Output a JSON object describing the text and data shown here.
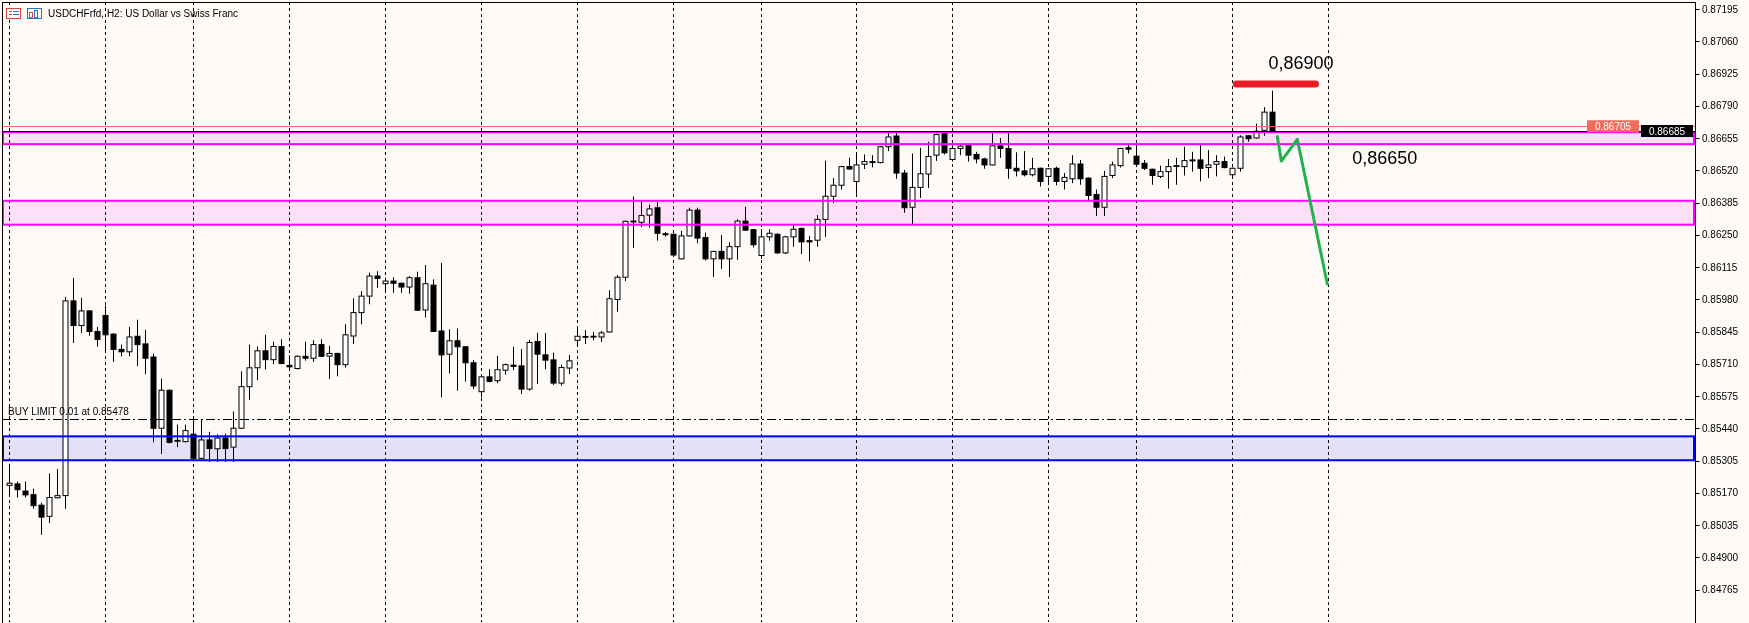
{
  "chart_data": {
    "type": "candlestick",
    "title": "USDCHFrfd, H2: US Dollar vs Swiss Franc",
    "categories": [
      null,
      null,
      null,
      null,
      null,
      null,
      null,
      null,
      null,
      null,
      null,
      null,
      null,
      null,
      null,
      null,
      null,
      null,
      null,
      null,
      null,
      null,
      null,
      null,
      null,
      null,
      null,
      null,
      null,
      null,
      null,
      null,
      null,
      null,
      null,
      null,
      null,
      null,
      null,
      null,
      null,
      null,
      null,
      null,
      null,
      null,
      null,
      null,
      null,
      null,
      null,
      null,
      null,
      null,
      null,
      null,
      null,
      null,
      null,
      null,
      null,
      null,
      null,
      null,
      null,
      null,
      null,
      null,
      null,
      null,
      null,
      null,
      null,
      null,
      null,
      null,
      null,
      null,
      null,
      null,
      null,
      null,
      null,
      null,
      null,
      null,
      null,
      null,
      null,
      null,
      null,
      null,
      null,
      null,
      null,
      null,
      null,
      null,
      null,
      null,
      null,
      null,
      null,
      null,
      null,
      null,
      null,
      null,
      null,
      null,
      null,
      null,
      null,
      null,
      null,
      null,
      null,
      null,
      null,
      null,
      null,
      null,
      null,
      null,
      null,
      null,
      null,
      null,
      null,
      null,
      null,
      null,
      null,
      null,
      null,
      null,
      null,
      null,
      null,
      null,
      null,
      null,
      null,
      null,
      null,
      null,
      null,
      null,
      null,
      null,
      null,
      null,
      null,
      null,
      null,
      null,
      null,
      null,
      null,
      null,
      null,
      null,
      null,
      null,
      null,
      null,
      null,
      null,
      null,
      null,
      null,
      null,
      null,
      null,
      null,
      null,
      null,
      null,
      null,
      null,
      null,
      null,
      null,
      null,
      null,
      null,
      null,
      null,
      null,
      null,
      null,
      null,
      null,
      null,
      null,
      null,
      null,
      null,
      null,
      null,
      null,
      null,
      null,
      null,
      null,
      null,
      null,
      null,
      null,
      null,
      null
    ],
    "ohlc": [
      [
        0.85202,
        0.85278,
        0.85159,
        0.85211
      ],
      [
        0.85208,
        0.85218,
        0.85151,
        0.85184
      ],
      [
        0.85178,
        0.85218,
        0.85151,
        0.85162
      ],
      [
        0.85163,
        0.85188,
        0.85104,
        0.85117
      ],
      [
        0.85119,
        0.85129,
        0.84995,
        0.85069
      ],
      [
        0.85072,
        0.85252,
        0.85044,
        0.85151
      ],
      [
        0.8515,
        0.8527,
        0.85148,
        0.85159
      ],
      [
        0.85159,
        0.85991,
        0.85104,
        0.85974
      ],
      [
        0.85974,
        0.8607,
        0.85798,
        0.85871
      ],
      [
        0.85871,
        0.85987,
        0.8584,
        0.85932
      ],
      [
        0.85932,
        0.85935,
        0.85828,
        0.85846
      ],
      [
        0.85846,
        0.85865,
        0.85783,
        0.85813
      ],
      [
        0.85913,
        0.85954,
        0.85768,
        0.85832
      ],
      [
        0.85835,
        0.85838,
        0.85719,
        0.85771
      ],
      [
        0.85771,
        0.85791,
        0.85742,
        0.85761
      ],
      [
        0.85761,
        0.85865,
        0.85742,
        0.85823
      ],
      [
        0.85826,
        0.85895,
        0.85701,
        0.85791
      ],
      [
        0.85794,
        0.85853,
        0.85667,
        0.85734
      ],
      [
        0.85739,
        0.85753,
        0.85382,
        0.85441
      ],
      [
        0.85441,
        0.85649,
        0.85333,
        0.856
      ],
      [
        0.856,
        0.85603,
        0.85377,
        0.85382
      ],
      [
        0.85389,
        0.85456,
        0.85362,
        0.8539
      ],
      [
        0.85385,
        0.85456,
        0.85382,
        0.85431
      ],
      [
        0.85416,
        0.85475,
        0.85312,
        0.85315
      ],
      [
        0.85315,
        0.85478,
        0.85312,
        0.85392
      ],
      [
        0.85392,
        0.85426,
        0.853,
        0.85356
      ],
      [
        0.85355,
        0.85416,
        0.853,
        0.854
      ],
      [
        0.854,
        0.85419,
        0.853,
        0.85356
      ],
      [
        0.85362,
        0.85511,
        0.853,
        0.85441
      ],
      [
        0.85441,
        0.85679,
        0.85438,
        0.85615
      ],
      [
        0.85615,
        0.85791,
        0.8556,
        0.85694
      ],
      [
        0.85694,
        0.85783,
        0.85642,
        0.85765
      ],
      [
        0.85765,
        0.85832,
        0.85687,
        0.85728
      ],
      [
        0.85728,
        0.85803,
        0.85709,
        0.85783
      ],
      [
        0.85783,
        0.85813,
        0.85709,
        0.85712
      ],
      [
        0.85704,
        0.85746,
        0.85687,
        0.85698
      ],
      [
        0.85691,
        0.85746,
        0.85687,
        0.85742
      ],
      [
        0.85742,
        0.85803,
        0.85724,
        0.85734
      ],
      [
        0.85734,
        0.85809,
        0.85719,
        0.85791
      ],
      [
        0.85791,
        0.85813,
        0.85739,
        0.85742
      ],
      [
        0.85743,
        0.85786,
        0.85647,
        0.85754
      ],
      [
        0.85754,
        0.85757,
        0.85658,
        0.85707
      ],
      [
        0.85707,
        0.85876,
        0.85695,
        0.85832
      ],
      [
        0.85827,
        0.85985,
        0.85793,
        0.85925
      ],
      [
        0.85925,
        0.86015,
        0.85876,
        0.85994
      ],
      [
        0.85994,
        0.86092,
        0.8596,
        0.86078
      ],
      [
        0.86078,
        0.86098,
        0.86029,
        0.86068
      ],
      [
        0.86046,
        0.86071,
        0.86008,
        0.86057
      ],
      [
        0.86057,
        0.86073,
        0.86008,
        0.86048
      ],
      [
        0.86048,
        0.8605,
        0.86008,
        0.86032
      ],
      [
        0.86032,
        0.86078,
        0.86004,
        0.86071
      ],
      [
        0.86071,
        0.86096,
        0.85932,
        0.85935
      ],
      [
        0.85936,
        0.86124,
        0.85904,
        0.86046
      ],
      [
        0.8604,
        0.86064,
        0.85844,
        0.85846
      ],
      [
        0.85848,
        0.86133,
        0.8557,
        0.85748
      ],
      [
        0.85751,
        0.85855,
        0.8567,
        0.85807
      ],
      [
        0.85807,
        0.85858,
        0.85598,
        0.85782
      ],
      [
        0.85782,
        0.85785,
        0.85636,
        0.85715
      ],
      [
        0.85715,
        0.85727,
        0.85605,
        0.85618
      ],
      [
        0.85594,
        0.85658,
        0.8557,
        0.85656
      ],
      [
        0.85656,
        0.85688,
        0.85633,
        0.85637
      ],
      [
        0.8564,
        0.85744,
        0.8563,
        0.85686
      ],
      [
        0.85684,
        0.85712,
        0.85665,
        0.85707
      ],
      [
        0.85705,
        0.85782,
        0.85684,
        0.857
      ],
      [
        0.85702,
        0.85772,
        0.85584,
        0.85605
      ],
      [
        0.85605,
        0.85811,
        0.85598,
        0.858
      ],
      [
        0.85804,
        0.85841,
        0.85626,
        0.85751
      ],
      [
        0.85748,
        0.85839,
        0.85688,
        0.85726
      ],
      [
        0.85727,
        0.85758,
        0.85622,
        0.8563
      ],
      [
        0.8563,
        0.85707,
        0.85619,
        0.85695
      ],
      [
        0.85693,
        0.85748,
        0.85668,
        0.85723
      ],
      [
        0.85809,
        0.85862,
        0.85793,
        0.85826
      ],
      [
        0.85825,
        0.85852,
        0.85793,
        0.85825
      ],
      [
        0.85825,
        0.85844,
        0.85809,
        0.85826
      ],
      [
        0.85823,
        0.85848,
        0.85802,
        0.8584
      ],
      [
        0.85844,
        0.86019,
        0.85842,
        0.85983
      ],
      [
        0.8598,
        0.86082,
        0.85929,
        0.86073
      ],
      [
        0.86073,
        0.8631,
        0.86057,
        0.86307
      ],
      [
        0.86307,
        0.86411,
        0.86196,
        0.86308
      ],
      [
        0.86303,
        0.86395,
        0.86283,
        0.86331
      ],
      [
        0.86333,
        0.86377,
        0.86281,
        0.86359
      ],
      [
        0.86364,
        0.86387,
        0.86226,
        0.86257
      ],
      [
        0.86255,
        0.86262,
        0.86243,
        0.86251
      ],
      [
        0.86253,
        0.86255,
        0.86157,
        0.86166
      ],
      [
        0.8615,
        0.86267,
        0.86148,
        0.86246
      ],
      [
        0.86246,
        0.86364,
        0.86244,
        0.86354
      ],
      [
        0.86354,
        0.86364,
        0.86215,
        0.86237
      ],
      [
        0.86239,
        0.8626,
        0.86143,
        0.8615
      ],
      [
        0.8615,
        0.86183,
        0.86074,
        0.86181
      ],
      [
        0.86181,
        0.8625,
        0.86108,
        0.8615
      ],
      [
        0.8615,
        0.86219,
        0.86074,
        0.86201
      ],
      [
        0.86201,
        0.86315,
        0.86146,
        0.86308
      ],
      [
        0.86308,
        0.86368,
        0.86268,
        0.8627
      ],
      [
        0.86272,
        0.86275,
        0.86198,
        0.86209
      ],
      [
        0.86164,
        0.86274,
        0.8615,
        0.86242
      ],
      [
        0.86242,
        0.86274,
        0.86226,
        0.86257
      ],
      [
        0.86253,
        0.86256,
        0.8617,
        0.86175
      ],
      [
        0.86175,
        0.86246,
        0.8617,
        0.86242
      ],
      [
        0.86242,
        0.86292,
        0.86201,
        0.86274
      ],
      [
        0.86277,
        0.86281,
        0.8617,
        0.86221
      ],
      [
        0.86226,
        0.86246,
        0.86139,
        0.86221
      ],
      [
        0.86228,
        0.86333,
        0.86201,
        0.86315
      ],
      [
        0.86315,
        0.86561,
        0.86242,
        0.86412
      ],
      [
        0.86412,
        0.86488,
        0.86384,
        0.86458
      ],
      [
        0.86458,
        0.86538,
        0.8644,
        0.86536
      ],
      [
        0.86536,
        0.86573,
        0.86522,
        0.86526
      ],
      [
        0.86474,
        0.86589,
        0.86422,
        0.86543
      ],
      [
        0.86546,
        0.86587,
        0.86526,
        0.86557
      ],
      [
        0.86557,
        0.86584,
        0.86533,
        0.86553
      ],
      [
        0.86553,
        0.86622,
        0.8655,
        0.86619
      ],
      [
        0.86619,
        0.86684,
        0.86601,
        0.8666
      ],
      [
        0.86664,
        0.86678,
        0.86485,
        0.86509
      ],
      [
        0.86509,
        0.86522,
        0.86343,
        0.86364
      ],
      [
        0.86366,
        0.86591,
        0.86295,
        0.86449
      ],
      [
        0.86449,
        0.86615,
        0.86405,
        0.86506
      ],
      [
        0.86505,
        0.8664,
        0.86446,
        0.86578
      ],
      [
        0.86584,
        0.86674,
        0.8656,
        0.8667
      ],
      [
        0.86674,
        0.86678,
        0.86587,
        0.86594
      ],
      [
        0.86566,
        0.86626,
        0.86557,
        0.86612
      ],
      [
        0.86612,
        0.8663,
        0.86584,
        0.86622
      ],
      [
        0.86626,
        0.86633,
        0.86557,
        0.86584
      ],
      [
        0.86587,
        0.86598,
        0.8655,
        0.86568
      ],
      [
        0.86568,
        0.86573,
        0.86527,
        0.86543
      ],
      [
        0.86543,
        0.86681,
        0.86541,
        0.86623
      ],
      [
        0.86623,
        0.86656,
        0.86573,
        0.86612
      ],
      [
        0.86612,
        0.86681,
        0.86485,
        0.86529
      ],
      [
        0.86529,
        0.86596,
        0.86495,
        0.86518
      ],
      [
        0.86518,
        0.86601,
        0.86495,
        0.86502
      ],
      [
        0.86502,
        0.86573,
        0.86495,
        0.86527
      ],
      [
        0.86529,
        0.86532,
        0.86453,
        0.86474
      ],
      [
        0.86495,
        0.86529,
        0.8646,
        0.86527
      ],
      [
        0.86529,
        0.86536,
        0.86458,
        0.86474
      ],
      [
        0.86474,
        0.86509,
        0.8644,
        0.86491
      ],
      [
        0.86485,
        0.86584,
        0.86467,
        0.86547
      ],
      [
        0.86547,
        0.86564,
        0.8646,
        0.86485
      ],
      [
        0.86488,
        0.8649,
        0.86391,
        0.86415
      ],
      [
        0.86419,
        0.8644,
        0.86329,
        0.86366
      ],
      [
        0.86366,
        0.86518,
        0.86329,
        0.86495
      ],
      [
        0.86499,
        0.86557,
        0.86488,
        0.86543
      ],
      [
        0.8654,
        0.86615,
        0.86532,
        0.86612
      ],
      [
        0.86615,
        0.86626,
        0.86591,
        0.86609
      ],
      [
        0.8658,
        0.86629,
        0.86536,
        0.86546
      ],
      [
        0.8655,
        0.86564,
        0.86522,
        0.86529
      ],
      [
        0.86525,
        0.86527,
        0.8646,
        0.86499
      ],
      [
        0.86495,
        0.8654,
        0.86488,
        0.86515
      ],
      [
        0.86515,
        0.86568,
        0.86444,
        0.86536
      ],
      [
        0.86538,
        0.86573,
        0.8646,
        0.8654
      ],
      [
        0.86536,
        0.86619,
        0.86499,
        0.86561
      ],
      [
        0.86564,
        0.86598,
        0.86515,
        0.8656
      ],
      [
        0.86564,
        0.86626,
        0.86474,
        0.86529
      ],
      [
        0.86532,
        0.86605,
        0.86488,
        0.86543
      ],
      [
        0.86546,
        0.86584,
        0.86495,
        0.86557
      ],
      [
        0.86557,
        0.86578,
        0.86529,
        0.86532
      ],
      [
        0.86502,
        0.86532,
        0.86485,
        0.86529
      ],
      [
        0.86529,
        0.86667,
        0.86515,
        0.8666
      ],
      [
        0.86665,
        0.86667,
        0.8664,
        0.86653
      ],
      [
        0.86656,
        0.86716,
        0.86653,
        0.86684
      ],
      [
        0.86688,
        0.86785,
        0.86665,
        0.86764
      ],
      [
        0.86764,
        0.86854,
        0.86684,
        0.86685
      ],
      null,
      null,
      null,
      null,
      null,
      null,
      null,
      null,
      null,
      null,
      null,
      null,
      null,
      null,
      null,
      null,
      null,
      null,
      null,
      null,
      null,
      null,
      null,
      null,
      null,
      null,
      null,
      null,
      null,
      null,
      null,
      null,
      null,
      null,
      null,
      null,
      null,
      null,
      null,
      null,
      null,
      null,
      null,
      null,
      null,
      null,
      null,
      null,
      null,
      null,
      null,
      null
    ],
    "ylim": [
      0.8463,
      0.87225
    ],
    "yticks": [
      0.84765,
      {
        "value": 0.849,
        "label": "0.84900"
      },
      0.85035,
      {
        "value": 0.8517,
        "label": "0.85170"
      },
      0.85305,
      {
        "value": 0.8544,
        "label": "0.85440"
      },
      0.85575,
      {
        "value": 0.8571,
        "label": "0.85710"
      },
      0.85845,
      {
        "value": 0.8598,
        "label": "0.85980"
      },
      0.86115,
      {
        "value": 0.8625,
        "label": "0.86250"
      },
      0.86385,
      {
        "value": 0.8652,
        "label": "0.86520"
      },
      0.86655,
      {
        "value": 0.8679,
        "label": "0.86790"
      },
      0.86925,
      {
        "value": 0.8706,
        "label": "0.87060"
      },
      0.87195
    ],
    "ref_lines": [
      {
        "axis": "y",
        "value": 0.86705,
        "label": "0.86705",
        "color": "#ef6c5d"
      },
      {
        "axis": "y",
        "value": 0.86685,
        "label": "0.86685",
        "color": "#000000"
      },
      {
        "axis": "y",
        "value": 0.85478,
        "label": "BUY LIMIT 0.01 at 0.85478",
        "color": "#000000",
        "line_style": "dashed"
      }
    ],
    "bands": [
      {
        "axis": "y",
        "from": 0.85307,
        "to": 0.85407,
        "color": "#0000ff"
      },
      {
        "axis": "y",
        "from": 0.86293,
        "to": 0.86393,
        "color": "#ff00ff"
      },
      {
        "axis": "y",
        "from": 0.8663,
        "to": 0.8668,
        "color": "#ff00ff"
      }
    ],
    "annotations": [
      "0,86900",
      "0,86650"
    ]
  }
}
